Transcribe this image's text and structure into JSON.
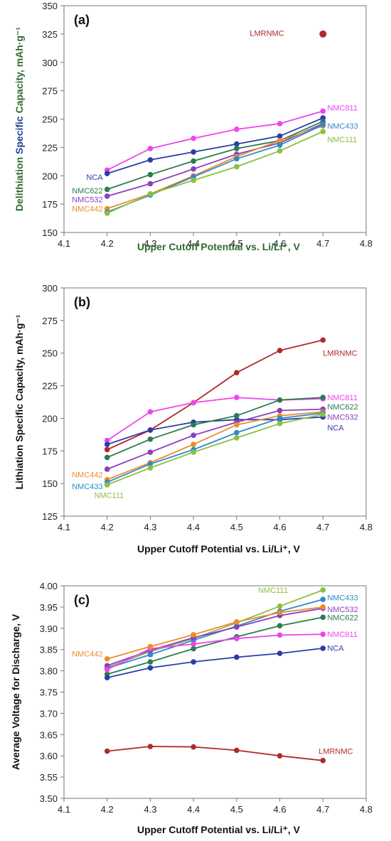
{
  "chart_data": [
    {
      "type": "line",
      "panel": "(a)",
      "xlabel": "Upper Cutoff Potential vs. Li/Li⁺, V",
      "ylabel_parts": [
        {
          "text": "Delithiation ",
          "color": "#2e6b2e"
        },
        {
          "text": "Specific ",
          "color": "#1f3f8f"
        },
        {
          "text": "Capacity, mAh·g⁻¹",
          "color": "#2e6b2e"
        }
      ],
      "xlim": [
        4.1,
        4.8
      ],
      "xticks": [
        "4.1",
        "4.2",
        "4.3",
        "4.4",
        "4.5",
        "4.6",
        "4.7",
        "4.8"
      ],
      "ylim": [
        150,
        350
      ],
      "yticks": [
        "150",
        "175",
        "200",
        "225",
        "250",
        "275",
        "300",
        "325",
        "350"
      ],
      "grid": false,
      "x": [
        4.2,
        4.3,
        4.4,
        4.5,
        4.6,
        4.7
      ],
      "series": [
        {
          "name": "NMC811",
          "color": "#ee44ee",
          "values": [
            205,
            224,
            233,
            241,
            246,
            257
          ]
        },
        {
          "name": "NCA",
          "color": "#2b3da8",
          "values": [
            202,
            214,
            221,
            228,
            235,
            251
          ]
        },
        {
          "name": "NMC622",
          "color": "#2a7d4f",
          "values": [
            188,
            201,
            213,
            224,
            231,
            248
          ]
        },
        {
          "name": "NMC532",
          "color": "#8a3fc2",
          "values": [
            182,
            193,
            206,
            219,
            229,
            246
          ]
        },
        {
          "name": "NMC442",
          "color": "#ee8c2a",
          "values": [
            171,
            184,
            200,
            217,
            231,
            244
          ]
        },
        {
          "name": "NMC433",
          "color": "#2f8bc9",
          "values": [
            168,
            183,
            199,
            215,
            227,
            245
          ]
        },
        {
          "name": "NMC111",
          "color": "#8cbf3f",
          "values": [
            167,
            184,
            196,
            208,
            222,
            239
          ]
        },
        {
          "name": "LMRNMC",
          "color": "#b02a2a",
          "points": [
            [
              4.7,
              325
            ]
          ]
        }
      ],
      "labels": [
        {
          "series": "LMRNMC",
          "text": "LMRNMC",
          "x": 4.61,
          "y": 326,
          "anchor": "end"
        },
        {
          "series": "NMC811",
          "text": "NMC811",
          "x": 4.71,
          "y": 260,
          "anchor": "start"
        },
        {
          "series": "NMC433",
          "text": "NMC433",
          "x": 4.71,
          "y": 244,
          "anchor": "start"
        },
        {
          "series": "NMC111",
          "text": "NMC111",
          "x": 4.71,
          "y": 232,
          "anchor": "start"
        },
        {
          "series": "NCA",
          "text": "NCA",
          "x": 4.19,
          "y": 199,
          "anchor": "end"
        },
        {
          "series": "NMC622",
          "text": "NMC622",
          "x": 4.19,
          "y": 187,
          "anchor": "end"
        },
        {
          "series": "NMC532",
          "text": "NMC532",
          "x": 4.19,
          "y": 179,
          "anchor": "end"
        },
        {
          "series": "NMC442",
          "text": "NMC442",
          "x": 4.19,
          "y": 171,
          "anchor": "end"
        }
      ]
    },
    {
      "type": "line",
      "panel": "(b)",
      "xlabel": "Upper Cutoff Potential vs. Li/Li⁺, V",
      "ylabel_parts": [
        {
          "text": "Lithiation Specific Capacity, mAh·g⁻¹",
          "color": "#111111"
        }
      ],
      "xlim": [
        4.1,
        4.8
      ],
      "xticks": [
        "4.1",
        "4.2",
        "4.3",
        "4.4",
        "4.5",
        "4.6",
        "4.7",
        "4.8"
      ],
      "ylim": [
        125,
        300
      ],
      "yticks": [
        "125",
        "150",
        "175",
        "200",
        "225",
        "250",
        "275",
        "300"
      ],
      "grid": false,
      "x": [
        4.2,
        4.3,
        4.4,
        4.5,
        4.6,
        4.7
      ],
      "series": [
        {
          "name": "LMRNMC",
          "color": "#b02a2a",
          "values": [
            176,
            191,
            212,
            235,
            252,
            260
          ]
        },
        {
          "name": "NMC811",
          "color": "#ee44ee",
          "values": [
            183,
            205,
            212,
            216,
            214,
            215
          ]
        },
        {
          "name": "NCA",
          "color": "#2b3da8",
          "values": [
            180,
            191,
            197,
            199,
            199,
            201
          ]
        },
        {
          "name": "NMC622",
          "color": "#2a7d4f",
          "values": [
            170,
            184,
            195,
            202,
            214,
            216
          ]
        },
        {
          "name": "NMC532",
          "color": "#8a3fc2",
          "values": [
            161,
            174,
            187,
            197,
            206,
            207
          ]
        },
        {
          "name": "NMC442",
          "color": "#ee8c2a",
          "values": [
            153,
            166,
            180,
            195,
            202,
            205
          ]
        },
        {
          "name": "NMC433",
          "color": "#2f8bc9",
          "values": [
            151,
            165,
            176,
            189,
            200,
            204
          ]
        },
        {
          "name": "NMC111",
          "color": "#8cbf3f",
          "values": [
            149,
            162,
            174,
            185,
            196,
            203
          ]
        }
      ],
      "labels": [
        {
          "series": "LMRNMC",
          "text": "LMRNMC",
          "x": 4.7,
          "y": 250,
          "anchor": "start"
        },
        {
          "series": "NMC811",
          "text": "NMC811",
          "x": 4.71,
          "y": 216,
          "anchor": "start"
        },
        {
          "series": "NMC622",
          "text": "NMC622",
          "x": 4.71,
          "y": 209,
          "anchor": "start"
        },
        {
          "series": "NMC532",
          "text": "NMC532",
          "x": 4.71,
          "y": 201,
          "anchor": "start"
        },
        {
          "series": "NCA",
          "text": "NCA",
          "x": 4.71,
          "y": 193,
          "anchor": "start"
        },
        {
          "series": "NMC442",
          "text": "NMC442",
          "x": 4.19,
          "y": 157,
          "anchor": "end"
        },
        {
          "series": "NMC433",
          "text": "NMC433",
          "x": 4.19,
          "y": 148,
          "anchor": "end"
        },
        {
          "series": "NMC111",
          "text": "NMC111",
          "x": 4.17,
          "y": 141,
          "anchor": "start"
        }
      ]
    },
    {
      "type": "line",
      "panel": "(c)",
      "xlabel": "Upper Cutoff Potential vs. Li/Li⁺, V",
      "ylabel_parts": [
        {
          "text": "Average Voltage for Discharge, V",
          "color": "#111111"
        }
      ],
      "xlim": [
        4.1,
        4.8
      ],
      "xticks": [
        "4.1",
        "4.2",
        "4.3",
        "4.4",
        "4.5",
        "4.6",
        "4.7",
        "4.8"
      ],
      "ylim": [
        3.5,
        4.0
      ],
      "yticks": [
        "3.50",
        "3.55",
        "3.60",
        "3.65",
        "3.70",
        "3.75",
        "3.80",
        "3.85",
        "3.90",
        "3.95",
        "4.00"
      ],
      "grid": false,
      "x": [
        4.2,
        4.3,
        4.4,
        4.5,
        4.6,
        4.7
      ],
      "series": [
        {
          "name": "NMC111",
          "color": "#8cbf3f",
          "values": [
            3.808,
            3.845,
            3.876,
            3.913,
            3.952,
            3.99
          ]
        },
        {
          "name": "NMC433",
          "color": "#2f8bc9",
          "values": [
            3.806,
            3.838,
            3.872,
            3.905,
            3.94,
            3.968
          ]
        },
        {
          "name": "NMC532",
          "color": "#8a3fc2",
          "values": [
            3.812,
            3.848,
            3.878,
            3.903,
            3.93,
            3.947
          ]
        },
        {
          "name": "NMC622",
          "color": "#2a7d4f",
          "values": [
            3.792,
            3.821,
            3.852,
            3.88,
            3.906,
            3.926
          ]
        },
        {
          "name": "NMC811",
          "color": "#ee44ee",
          "values": [
            3.803,
            3.852,
            3.863,
            3.876,
            3.884,
            3.886
          ]
        },
        {
          "name": "NCA",
          "color": "#2b3da8",
          "values": [
            3.784,
            3.807,
            3.821,
            3.832,
            3.841,
            3.853
          ]
        },
        {
          "name": "NMC442",
          "color": "#ee8c2a",
          "values": [
            3.828,
            3.857,
            3.885,
            3.915,
            3.937,
            3.95
          ]
        },
        {
          "name": "LMRNMC",
          "color": "#b02a2a",
          "values": [
            3.611,
            3.622,
            3.621,
            3.613,
            3.6,
            3.589
          ]
        }
      ],
      "labels": [
        {
          "series": "NMC111",
          "text": "NMC111",
          "x": 4.55,
          "y": 3.99,
          "anchor": "start"
        },
        {
          "series": "NMC433",
          "text": "NMC433",
          "x": 4.71,
          "y": 3.972,
          "anchor": "start"
        },
        {
          "series": "NMC532",
          "text": "NMC532",
          "x": 4.71,
          "y": 3.945,
          "anchor": "start"
        },
        {
          "series": "NMC622",
          "text": "NMC622",
          "x": 4.71,
          "y": 3.926,
          "anchor": "start"
        },
        {
          "series": "NMC811",
          "text": "NMC811",
          "x": 4.71,
          "y": 3.886,
          "anchor": "start"
        },
        {
          "series": "NCA",
          "text": "NCA",
          "x": 4.71,
          "y": 3.854,
          "anchor": "start"
        },
        {
          "series": "NMC442",
          "text": "NMC442",
          "x": 4.19,
          "y": 3.84,
          "anchor": "end"
        },
        {
          "series": "LMRNMC",
          "text": "LMRNMC",
          "x": 4.69,
          "y": 3.611,
          "anchor": "start"
        }
      ]
    }
  ]
}
